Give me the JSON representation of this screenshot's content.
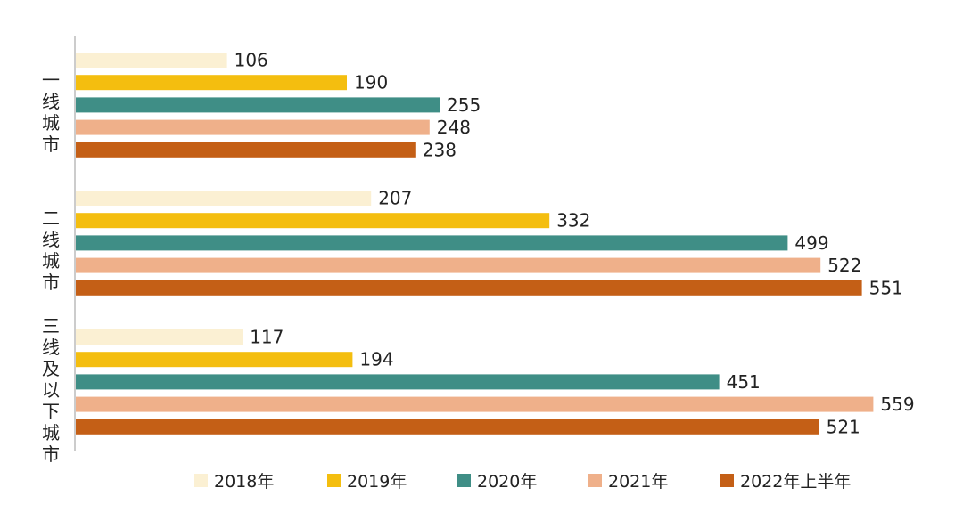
{
  "chart_data": {
    "type": "bar",
    "orientation": "horizontal",
    "title": "",
    "xlabel": "",
    "ylabel": "",
    "xlim": [
      0,
      600
    ],
    "grid": false,
    "legend_position": "bottom",
    "categories": [
      "一线城市",
      "二线城市",
      "三线及以下城市"
    ],
    "series": [
      {
        "name": "2018年",
        "color": "#FBF0D3",
        "values": [
          106,
          207,
          117
        ]
      },
      {
        "name": "2019年",
        "color": "#F4BE0F",
        "values": [
          190,
          332,
          194
        ]
      },
      {
        "name": "2020年",
        "color": "#3F8E86",
        "values": [
          255,
          499,
          451
        ]
      },
      {
        "name": "2021年",
        "color": "#EFB08A",
        "values": [
          248,
          522,
          559
        ]
      },
      {
        "name": "2022年上半年",
        "color": "#C45F16",
        "values": [
          238,
          551,
          521
        ]
      }
    ]
  }
}
